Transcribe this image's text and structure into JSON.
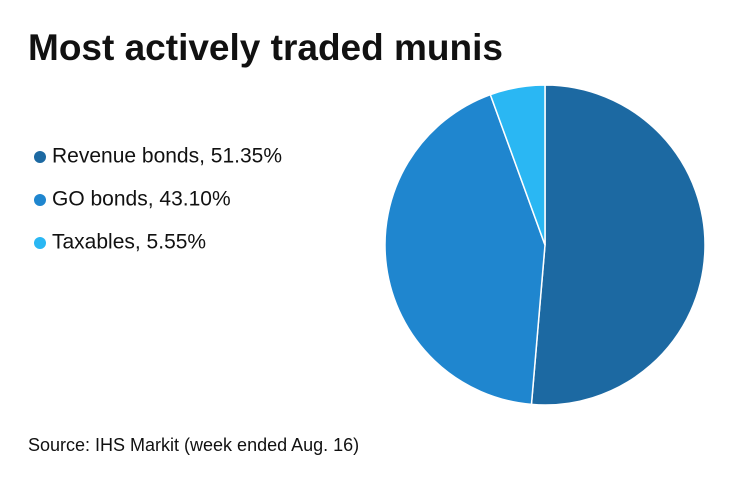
{
  "chart_data": {
    "type": "pie",
    "title": "Most actively traded munis",
    "categories": [
      "Revenue bonds, 51.35%",
      "GO bonds, 43.10%",
      "Taxables, 5.55%"
    ],
    "values": [
      51.35,
      43.1,
      5.55
    ],
    "colors": [
      "#1c69a2",
      "#1f86cf",
      "#2ab7f3"
    ],
    "source": "Source: IHS Markit (week ended Aug. 16)"
  }
}
